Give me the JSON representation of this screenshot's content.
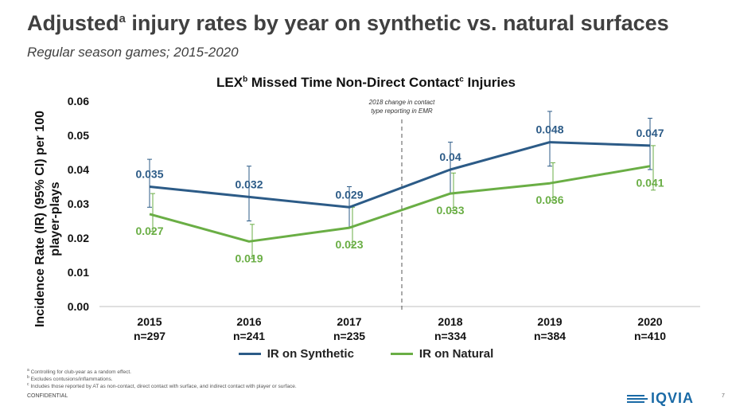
{
  "header": {
    "title": "Adjusted",
    "title_sup": "a",
    "title_rest": " injury rates by year on synthetic vs. natural surfaces",
    "subtitle": "Regular season games; 2015-2020"
  },
  "chart_data": {
    "type": "line",
    "title_main": "LEX",
    "title_sup_b": "b",
    "title_mid": " Missed Time Non-Direct Contact",
    "title_sup_c": "c",
    "title_end": " Injuries",
    "ylabel_line1": "Incidence Rate (IR) (95% CI) per 100",
    "ylabel_line2": "player-plays",
    "ylim": [
      0,
      0.06
    ],
    "y_ticks": [
      "0.00",
      "0.01",
      "0.02",
      "0.03",
      "0.04",
      "0.05",
      "0.06"
    ],
    "categories": [
      "2015",
      "2016",
      "2017",
      "2018",
      "2019",
      "2020"
    ],
    "n_labels": [
      "n=297",
      "n=241",
      "n=235",
      "n=334",
      "n=384",
      "n=410"
    ],
    "annotation_line1": "2018 change in contact",
    "annotation_line2": "type reporting in EMR",
    "series": [
      {
        "name": "IR on Synthetic",
        "color": "#2c5b87",
        "values": [
          0.035,
          0.032,
          0.029,
          0.04,
          0.048,
          0.047
        ],
        "labels": [
          "0.035",
          "0.032",
          "0.029",
          "0.04",
          "0.048",
          "0.047"
        ],
        "ci_low": [
          0.029,
          0.025,
          0.023,
          0.033,
          0.041,
          0.04
        ],
        "ci_high": [
          0.043,
          0.041,
          0.035,
          0.048,
          0.057,
          0.055
        ]
      },
      {
        "name": "IR on Natural",
        "color": "#6aae45",
        "values": [
          0.027,
          0.019,
          0.023,
          0.033,
          0.036,
          0.041
        ],
        "labels": [
          "0.027",
          "0.019",
          "0.023",
          "0.033",
          "0.036",
          "0.041"
        ],
        "ci_low": [
          0.022,
          0.014,
          0.018,
          0.028,
          0.031,
          0.034
        ],
        "ci_high": [
          0.033,
          0.024,
          0.029,
          0.039,
          0.042,
          0.047
        ]
      }
    ]
  },
  "footnotes": {
    "a_mark": "a",
    "a": "Controlling for club-year as a random effect.",
    "b_mark": "b",
    "b": "Excludes contusions/inflammations.",
    "c_mark": "c",
    "c": "Includes those reported by AT as non-contact, direct contact with surface, and indirect contact with player or surface."
  },
  "footer": {
    "confidential": "CONFIDENTIAL",
    "logo": "IQVIA",
    "page_number": "7"
  }
}
